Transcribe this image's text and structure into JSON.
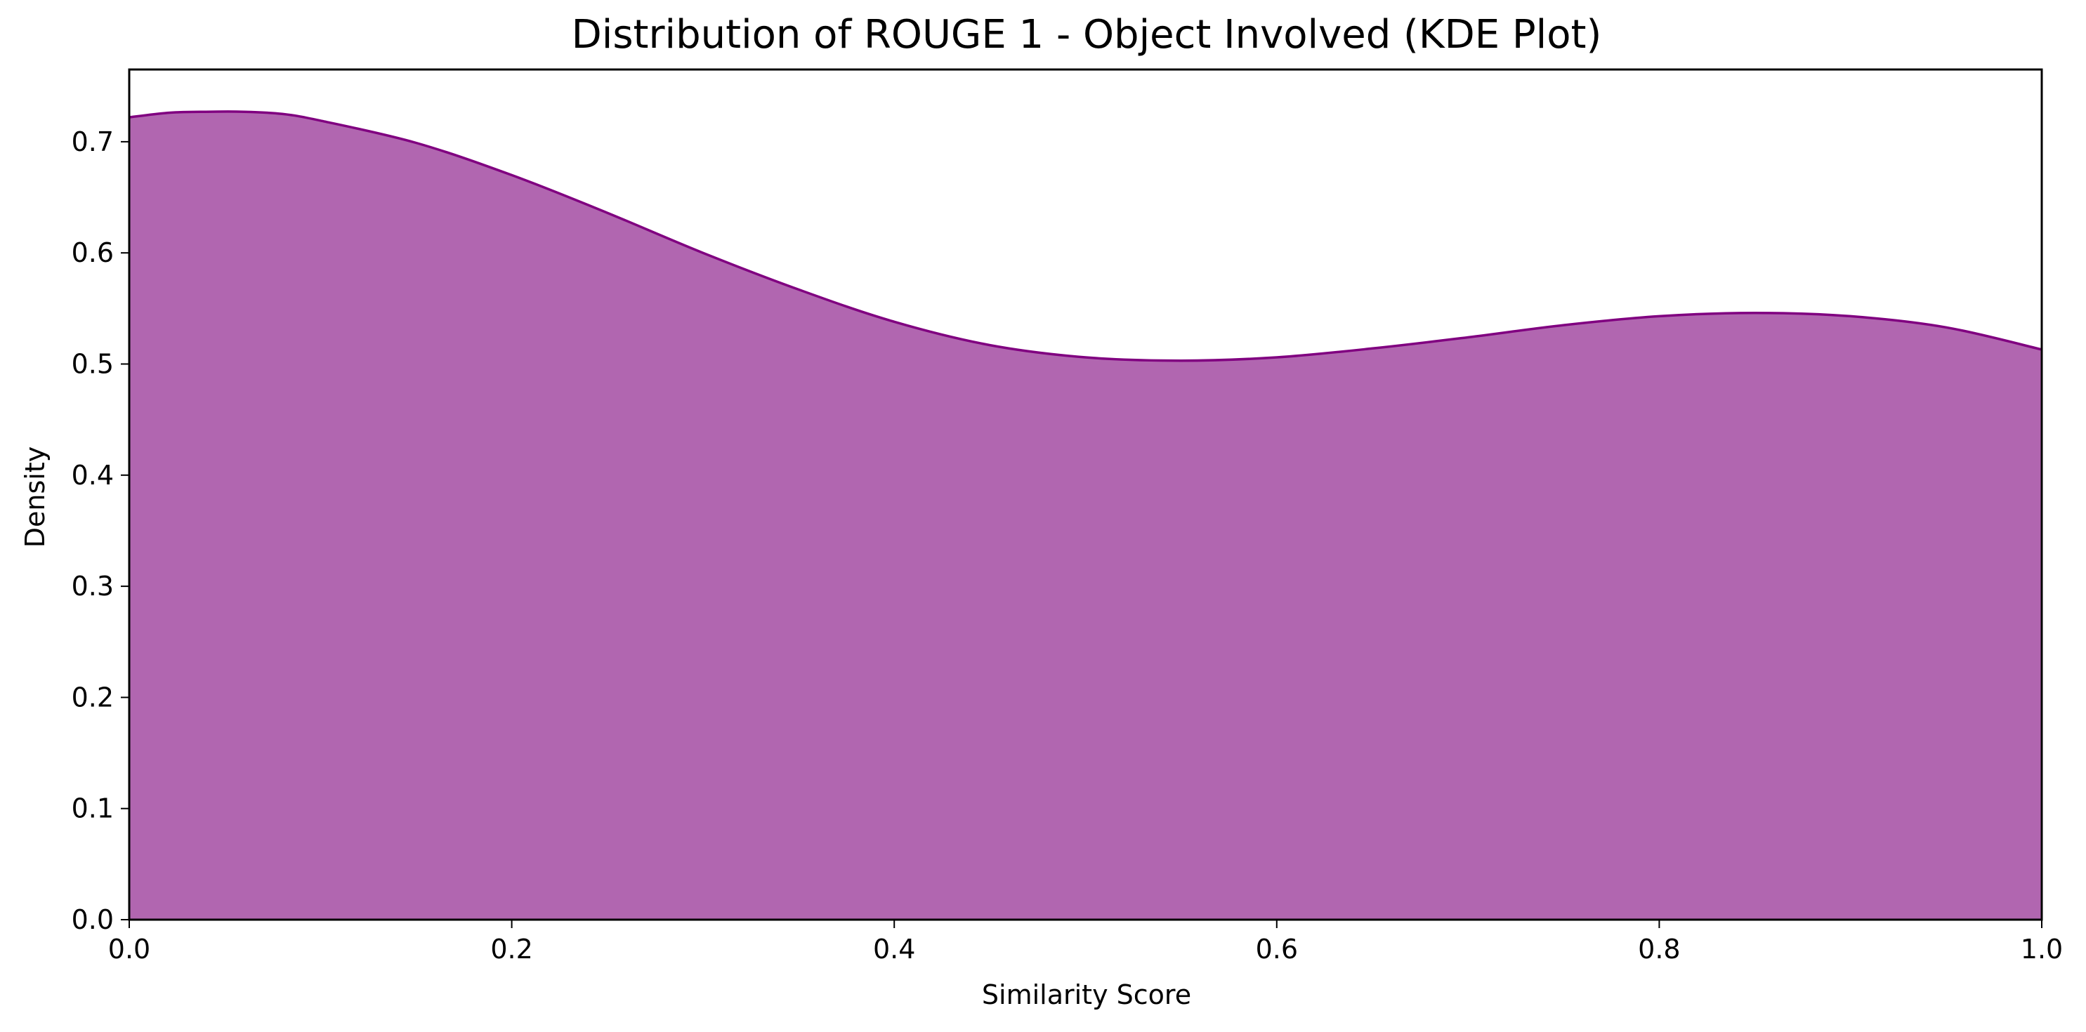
{
  "chart_data": {
    "type": "area",
    "title": "Distribution of ROUGE 1 - Object Involved (KDE Plot)",
    "xlabel": "Similarity Score",
    "ylabel": "Density",
    "xlim": [
      0.0,
      1.0
    ],
    "ylim": [
      0.0,
      0.765
    ],
    "xticks": [
      0.0,
      0.2,
      0.4,
      0.6,
      0.8,
      1.0
    ],
    "xtick_labels": [
      "0.0",
      "0.2",
      "0.4",
      "0.6",
      "0.8",
      "1.0"
    ],
    "yticks": [
      0.0,
      0.1,
      0.2,
      0.3,
      0.4,
      0.5,
      0.6,
      0.7
    ],
    "ytick_labels": [
      "0.0",
      "0.1",
      "0.2",
      "0.3",
      "0.4",
      "0.5",
      "0.6",
      "0.7"
    ],
    "grid": false,
    "colors": {
      "fill": "#b166b0",
      "line": "#800080"
    },
    "series": [
      {
        "x": [
          0.0,
          0.02,
          0.04,
          0.06,
          0.08,
          0.1,
          0.15,
          0.2,
          0.25,
          0.3,
          0.35,
          0.4,
          0.45,
          0.5,
          0.55,
          0.6,
          0.65,
          0.7,
          0.75,
          0.8,
          0.85,
          0.9,
          0.95,
          1.0
        ],
        "values": [
          0.722,
          0.726,
          0.727,
          0.727,
          0.725,
          0.719,
          0.699,
          0.67,
          0.636,
          0.6,
          0.567,
          0.538,
          0.517,
          0.506,
          0.503,
          0.506,
          0.514,
          0.524,
          0.535,
          0.543,
          0.546,
          0.543,
          0.533,
          0.513
        ]
      }
    ]
  }
}
